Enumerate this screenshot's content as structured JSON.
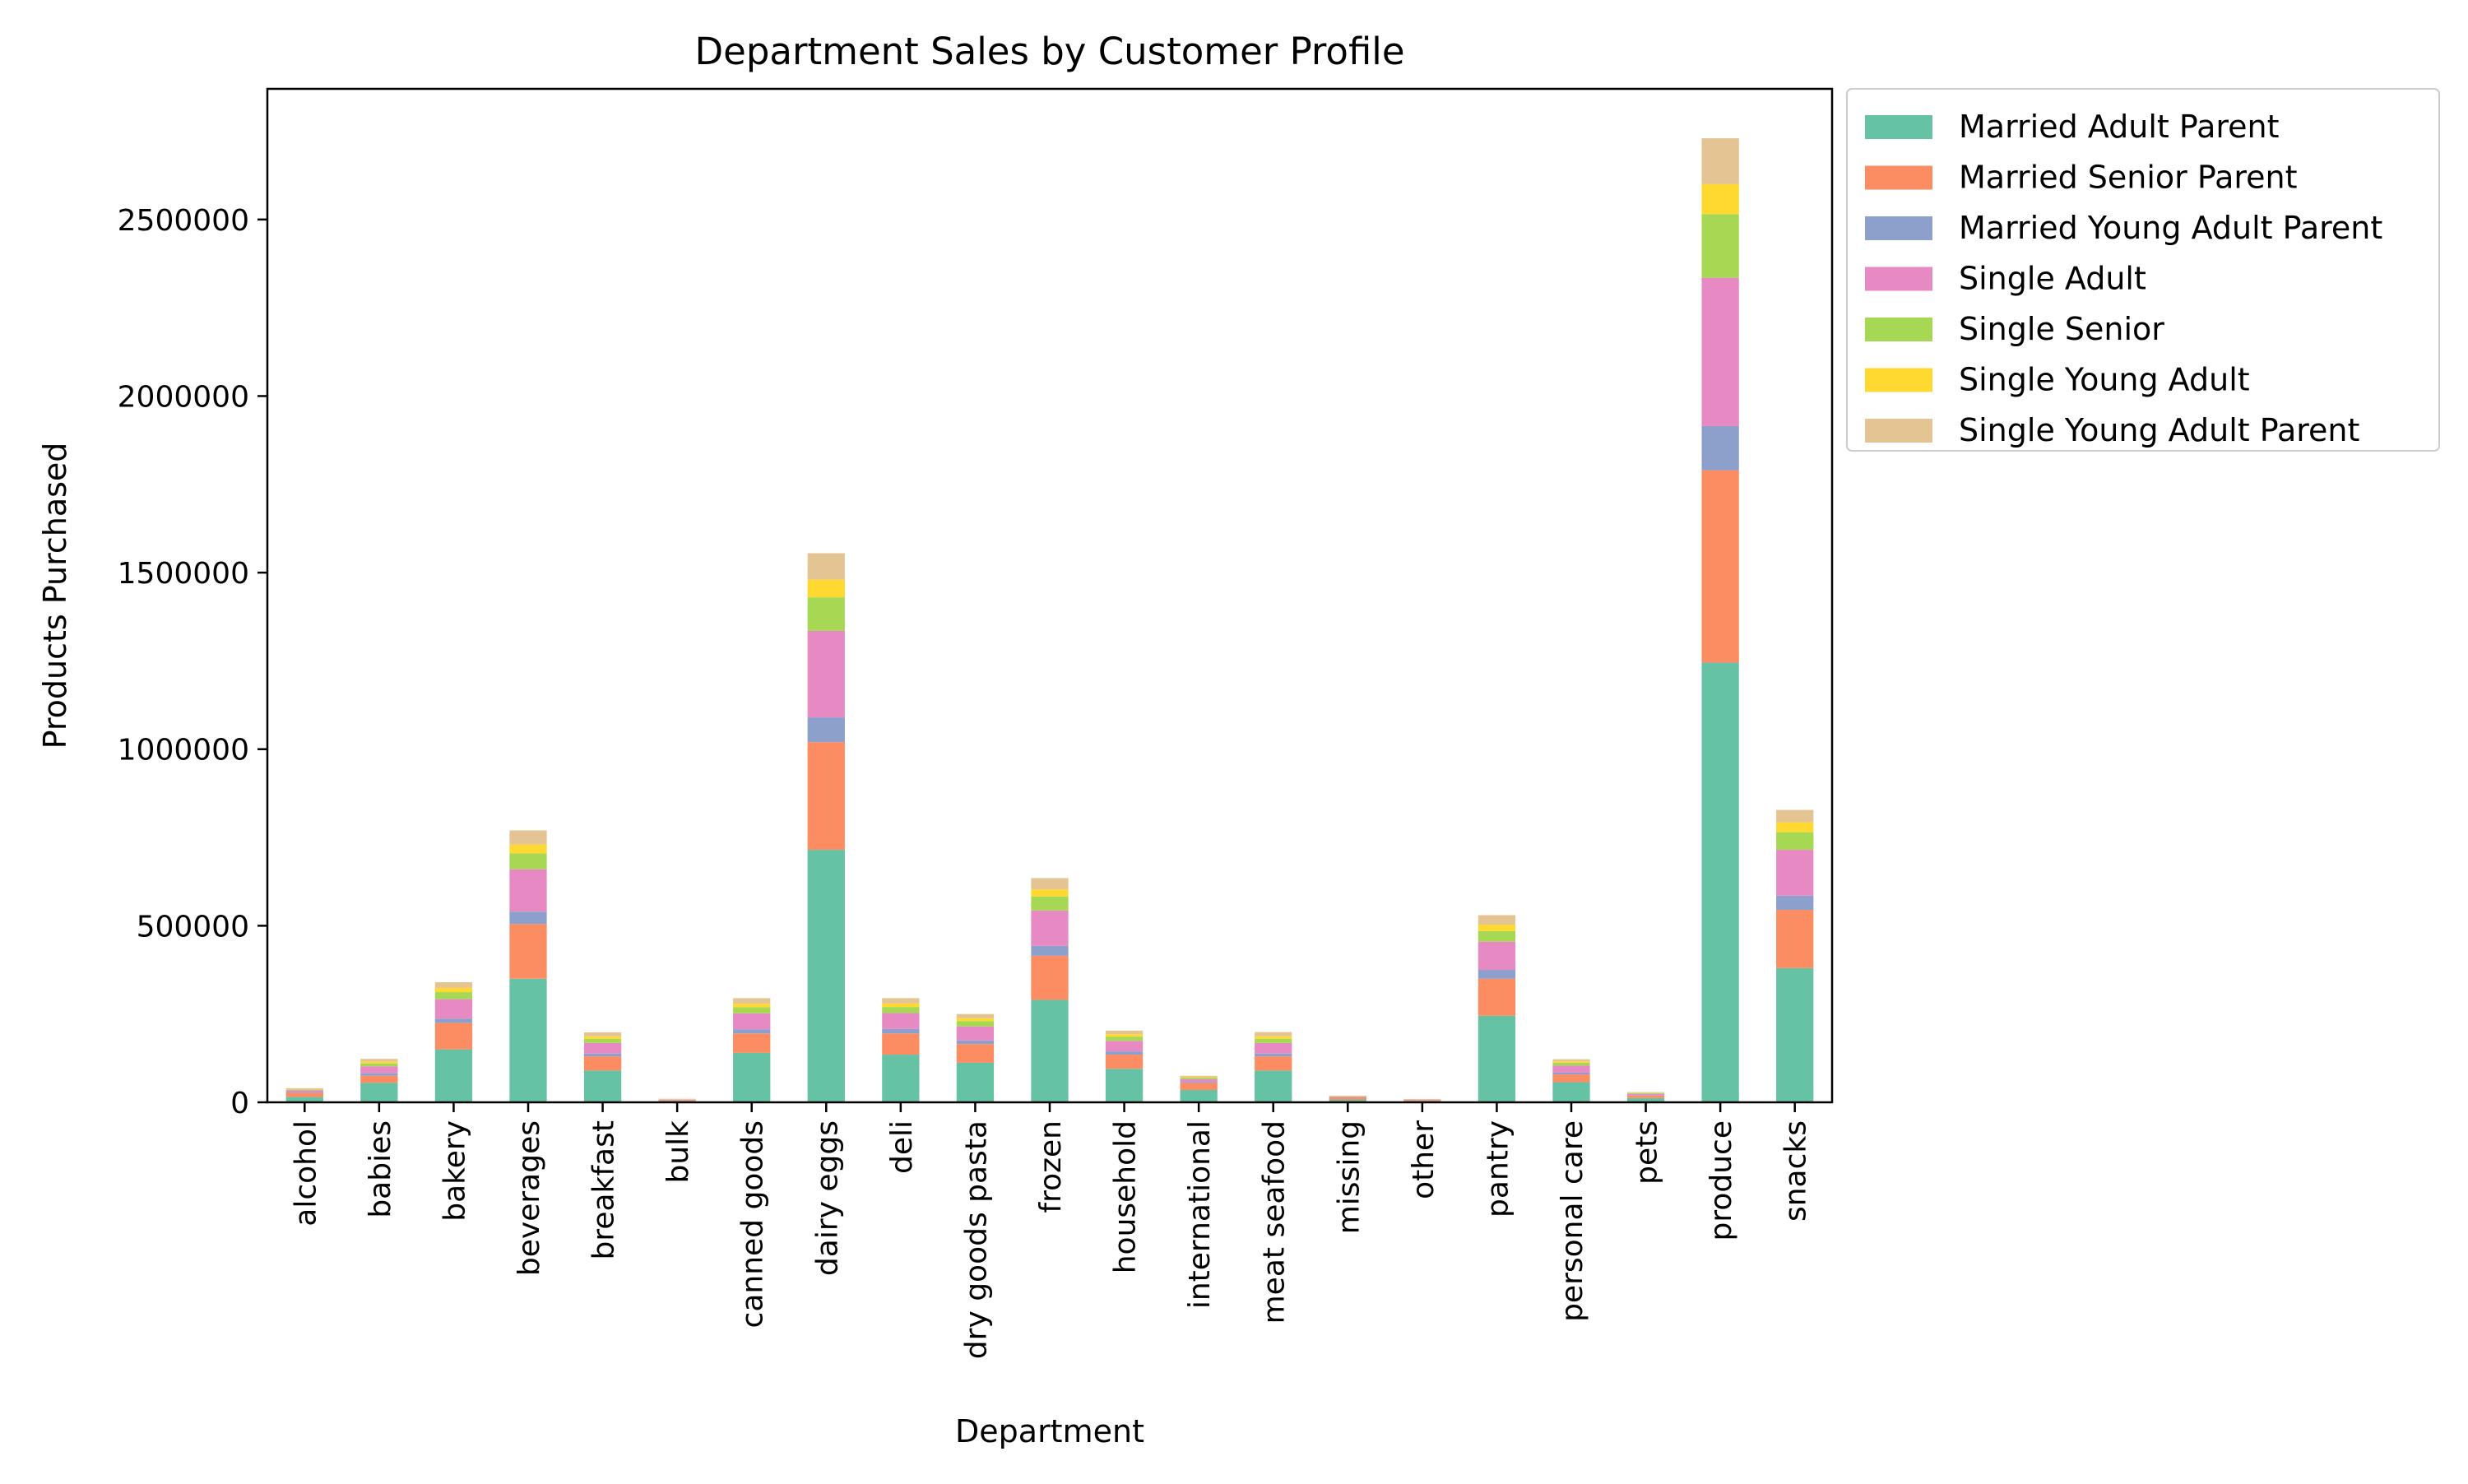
{
  "chart_data": {
    "type": "bar",
    "stacked": true,
    "title": "Department Sales by Customer Profile",
    "xlabel": "Department",
    "ylabel": "Products Purchased",
    "ylim": [
      0,
      2870000
    ],
    "yticks": [
      0,
      500000,
      1000000,
      1500000,
      2000000,
      2500000
    ],
    "ytick_labels": [
      "0",
      "500000",
      "1000000",
      "1500000",
      "2000000",
      "2500000"
    ],
    "grid": false,
    "legend_position": "outside-top-right",
    "categories": [
      "alcohol",
      "babies",
      "bakery",
      "beverages",
      "breakfast",
      "bulk",
      "canned goods",
      "dairy eggs",
      "deli",
      "dry goods pasta",
      "frozen",
      "household",
      "international",
      "meat seafood",
      "missing",
      "other",
      "pantry",
      "personal care",
      "pets",
      "produce",
      "snacks"
    ],
    "series": [
      {
        "name": "Married Adult Parent",
        "color": "#66c2a5",
        "values": [
          15000,
          55000,
          150000,
          350000,
          90000,
          3000,
          140000,
          715000,
          135000,
          112000,
          290000,
          95000,
          35000,
          90000,
          7000,
          3000,
          245000,
          57000,
          12000,
          1245000,
          380000
        ]
      },
      {
        "name": "Married Senior Parent",
        "color": "#fc8d62",
        "values": [
          12000,
          20000,
          75000,
          155000,
          40000,
          2000,
          55000,
          305000,
          60000,
          53000,
          125000,
          40000,
          20000,
          40000,
          6000,
          2000,
          105000,
          22000,
          7000,
          545000,
          165000
        ]
      },
      {
        "name": "Married Young Adult Parent",
        "color": "#8da0cb",
        "values": [
          2000,
          7000,
          12000,
          35000,
          8000,
          500,
          12000,
          70000,
          13000,
          10000,
          28000,
          9000,
          3000,
          8000,
          1000,
          500,
          25000,
          5000,
          1000,
          125000,
          40000
        ]
      },
      {
        "name": "Single Adult",
        "color": "#e78ac3",
        "values": [
          5000,
          20000,
          55000,
          120000,
          30000,
          2000,
          45000,
          245000,
          45000,
          40000,
          100000,
          30000,
          8000,
          30000,
          2000,
          1500,
          80000,
          20000,
          4000,
          420000,
          130000
        ]
      },
      {
        "name": "Single Senior",
        "color": "#a6d854",
        "values": [
          2000,
          8000,
          20000,
          45000,
          12000,
          1000,
          17000,
          95000,
          17000,
          15000,
          40000,
          12000,
          4000,
          12000,
          1000,
          1000,
          30000,
          8000,
          2000,
          180000,
          50000
        ]
      },
      {
        "name": "Single Young Adult",
        "color": "#ffd92f",
        "values": [
          1000,
          5000,
          12000,
          25000,
          7000,
          500,
          10000,
          50000,
          10000,
          8000,
          20000,
          7000,
          2000,
          7000,
          500,
          500,
          18000,
          4000,
          1000,
          85000,
          28000
        ]
      },
      {
        "name": "Single Young Adult Parent",
        "color": "#e5c494",
        "values": [
          3000,
          8000,
          16000,
          40000,
          11000,
          1000,
          16000,
          75000,
          15000,
          12000,
          32000,
          10000,
          3000,
          12000,
          1500,
          1000,
          27000,
          6000,
          2000,
          130000,
          35000
        ]
      }
    ]
  }
}
